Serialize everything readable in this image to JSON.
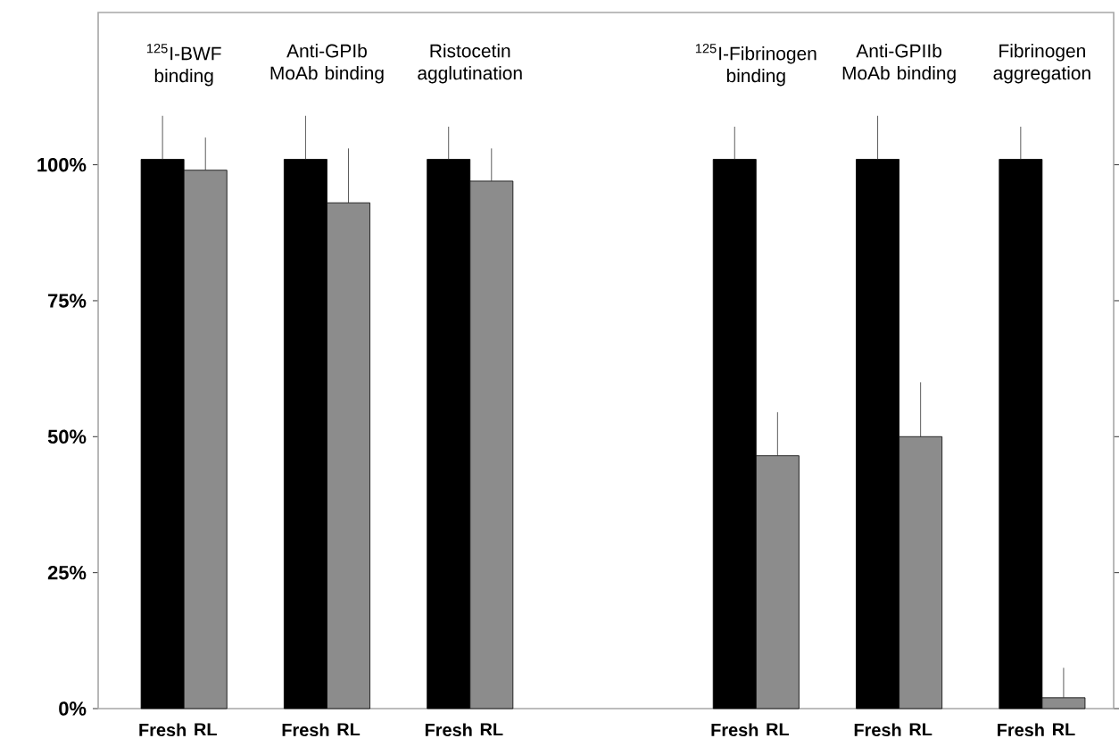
{
  "chart_data": {
    "type": "bar",
    "categories": [
      "$^{125}$I-BWF binding",
      "Anti-GPIb MoAb binding",
      "Ristocetin agglutination",
      null,
      "$^{125}$I-Fibrinogen binding",
      "Anti-GPIIb MoAb binding",
      "Fibrinogen aggregation"
    ],
    "series": [
      {
        "name": "Fresh",
        "color": "#000000",
        "values": [
          101,
          101,
          101,
          null,
          101,
          101,
          101
        ],
        "errors": [
          [
            101,
            109
          ],
          [
            101,
            109
          ],
          [
            101,
            107
          ],
          null,
          [
            101,
            107
          ],
          [
            101,
            109
          ],
          [
            101,
            107
          ]
        ]
      },
      {
        "name": "RL",
        "color": "#8c8c8c",
        "values": [
          99,
          93,
          97,
          null,
          46.5,
          50,
          2
        ],
        "errors": [
          [
            99,
            105
          ],
          [
            93,
            103
          ],
          [
            97,
            103
          ],
          null,
          [
            46.5,
            54.5
          ],
          [
            50,
            60
          ],
          [
            2,
            7.5
          ]
        ]
      }
    ],
    "ylim": [
      0,
      128
    ],
    "yticks": [
      {
        "value": 0,
        "label": "0%"
      },
      {
        "value": 25,
        "label": "25%"
      },
      {
        "value": 50,
        "label": "50%"
      },
      {
        "value": 75,
        "label": "75%"
      },
      {
        "value": 100,
        "label": "100%"
      }
    ]
  }
}
